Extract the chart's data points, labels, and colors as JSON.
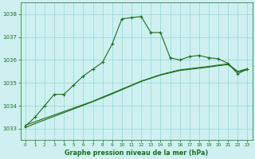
{
  "x": [
    0,
    1,
    2,
    3,
    4,
    5,
    6,
    7,
    8,
    9,
    10,
    11,
    12,
    13,
    14,
    15,
    16,
    17,
    18,
    19,
    20,
    21,
    22,
    23
  ],
  "line_main": [
    1033.1,
    1033.5,
    1034.0,
    1034.5,
    1034.5,
    1034.9,
    1035.3,
    1035.6,
    1035.9,
    1036.7,
    1037.8,
    1037.85,
    1037.9,
    1037.2,
    1037.2,
    1036.1,
    1036.0,
    1036.15,
    1036.2,
    1036.1,
    1036.05,
    1035.85,
    1035.4,
    1035.6
  ],
  "line_reg1": [
    1033.15,
    1033.3,
    1033.45,
    1033.6,
    1033.75,
    1033.9,
    1034.05,
    1034.2,
    1034.38,
    1034.55,
    1034.73,
    1034.9,
    1035.08,
    1035.22,
    1035.36,
    1035.47,
    1035.57,
    1035.62,
    1035.67,
    1035.72,
    1035.78,
    1035.83,
    1035.5,
    1035.62
  ],
  "line_reg2": [
    1033.05,
    1033.22,
    1033.38,
    1033.54,
    1033.7,
    1033.86,
    1034.02,
    1034.18,
    1034.35,
    1034.52,
    1034.7,
    1034.88,
    1035.06,
    1035.2,
    1035.34,
    1035.44,
    1035.54,
    1035.59,
    1035.64,
    1035.69,
    1035.75,
    1035.8,
    1035.48,
    1035.58
  ],
  "line_color": "#1a6e1a",
  "bg_color": "#cff0f0",
  "grid_color": "#8fd8d8",
  "text_color": "#1a6e1a",
  "ylabel_ticks": [
    1033,
    1034,
    1035,
    1036,
    1037,
    1038
  ],
  "xlabel": "Graphe pression niveau de la mer (hPa)",
  "ylim": [
    1032.5,
    1038.5
  ],
  "xlim": [
    -0.5,
    23.5
  ],
  "figsize": [
    3.2,
    2.0
  ],
  "dpi": 100
}
